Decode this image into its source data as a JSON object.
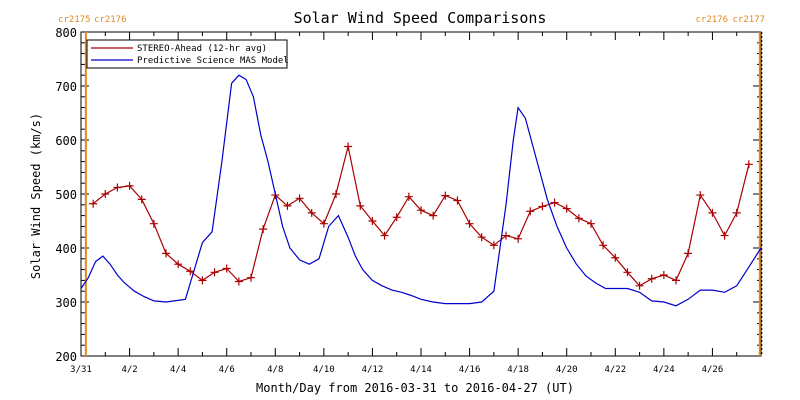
{
  "chart_data": {
    "type": "line",
    "title": "Solar Wind Speed Comparisons",
    "xlabel": "Month/Day from 2016-03-31 to 2016-04-27 (UT)",
    "ylabel": "Solar Wind Speed (km/s)",
    "xlim": [
      0,
      28
    ],
    "ylim": [
      200,
      800
    ],
    "yticks": [
      200,
      300,
      400,
      500,
      600,
      700,
      800
    ],
    "xticks": [
      {
        "d": 0,
        "label": "3/31"
      },
      {
        "d": 2,
        "label": "4/2"
      },
      {
        "d": 4,
        "label": "4/4"
      },
      {
        "d": 6,
        "label": "4/6"
      },
      {
        "d": 8,
        "label": "4/8"
      },
      {
        "d": 10,
        "label": "4/10"
      },
      {
        "d": 12,
        "label": "4/12"
      },
      {
        "d": 14,
        "label": "4/14"
      },
      {
        "d": 16,
        "label": "4/16"
      },
      {
        "d": 18,
        "label": "4/18"
      },
      {
        "d": 20,
        "label": "4/20"
      },
      {
        "d": 22,
        "label": "4/22"
      },
      {
        "d": 24,
        "label": "4/24"
      },
      {
        "d": 26,
        "label": "4/26"
      }
    ],
    "carrington": {
      "left_labels": [
        "cr2175",
        "cr2176"
      ],
      "right_labels": [
        "cr2176",
        "cr2177"
      ],
      "left_line_d": 0.2,
      "right_line_d": 27.95,
      "color": "#e08a1e"
    },
    "legend_position": "top-left",
    "series": [
      {
        "name": "STEREO-Ahead (12-hr avg)",
        "color": "#aa0000",
        "marker": "+",
        "x": [
          0.5,
          1,
          1.5,
          2,
          2.5,
          3,
          3.5,
          4,
          4.5,
          5,
          5.5,
          6,
          6.5,
          7,
          7.5,
          8,
          8.5,
          9,
          9.5,
          10,
          10.5,
          11,
          11.5,
          12,
          12.5,
          13,
          13.5,
          14,
          14.5,
          15,
          15.5,
          16,
          16.5,
          17,
          17.5,
          18,
          18.5,
          19,
          19.5,
          20,
          20.5,
          21,
          21.5,
          22,
          22.5,
          23,
          23.5,
          24,
          24.5,
          25,
          25.5,
          26,
          26.5,
          27,
          27.5
        ],
        "y": [
          482,
          500,
          512,
          515,
          490,
          445,
          390,
          370,
          357,
          340,
          355,
          362,
          338,
          345,
          435,
          498,
          478,
          492,
          465,
          445,
          500,
          588,
          478,
          450,
          423,
          457,
          495,
          470,
          460,
          497,
          488,
          445,
          420,
          405,
          423,
          417,
          468,
          477,
          484,
          473,
          455,
          445,
          405,
          382,
          355,
          330,
          343,
          350,
          340,
          390,
          498,
          465,
          423,
          465,
          555
        ]
      },
      {
        "name": "Predictive Science MAS Model",
        "color": "#0000cc",
        "marker": "",
        "x": [
          0,
          0.3,
          0.6,
          0.9,
          1.2,
          1.5,
          1.8,
          2.2,
          2.6,
          3,
          3.5,
          4,
          4.3,
          4.6,
          5,
          5.4,
          5.8,
          6.2,
          6.5,
          6.8,
          7.1,
          7.4,
          7.7,
          8,
          8.3,
          8.6,
          9,
          9.4,
          9.8,
          10.2,
          10.6,
          11,
          11.3,
          11.6,
          12,
          12.4,
          12.8,
          13.2,
          13.6,
          14,
          14.5,
          15,
          15.5,
          16,
          16.5,
          17,
          17.5,
          17.8,
          18,
          18.3,
          18.6,
          18.9,
          19.2,
          19.6,
          20,
          20.4,
          20.8,
          21.2,
          21.6,
          22,
          22.5,
          23,
          23.5,
          24,
          24.5,
          25,
          25.5,
          26,
          26.5,
          27,
          27.5,
          28
        ],
        "y": [
          325,
          345,
          375,
          385,
          370,
          350,
          335,
          320,
          310,
          302,
          300,
          303,
          305,
          350,
          410,
          430,
          560,
          705,
          720,
          712,
          680,
          610,
          560,
          500,
          440,
          400,
          378,
          370,
          380,
          440,
          460,
          420,
          385,
          360,
          340,
          330,
          322,
          318,
          312,
          305,
          300,
          297,
          297,
          297,
          300,
          320,
          480,
          600,
          660,
          640,
          590,
          540,
          490,
          440,
          400,
          370,
          348,
          335,
          325,
          325,
          325,
          318,
          302,
          300,
          293,
          305,
          322,
          322,
          318,
          330,
          365,
          400
        ]
      }
    ]
  }
}
